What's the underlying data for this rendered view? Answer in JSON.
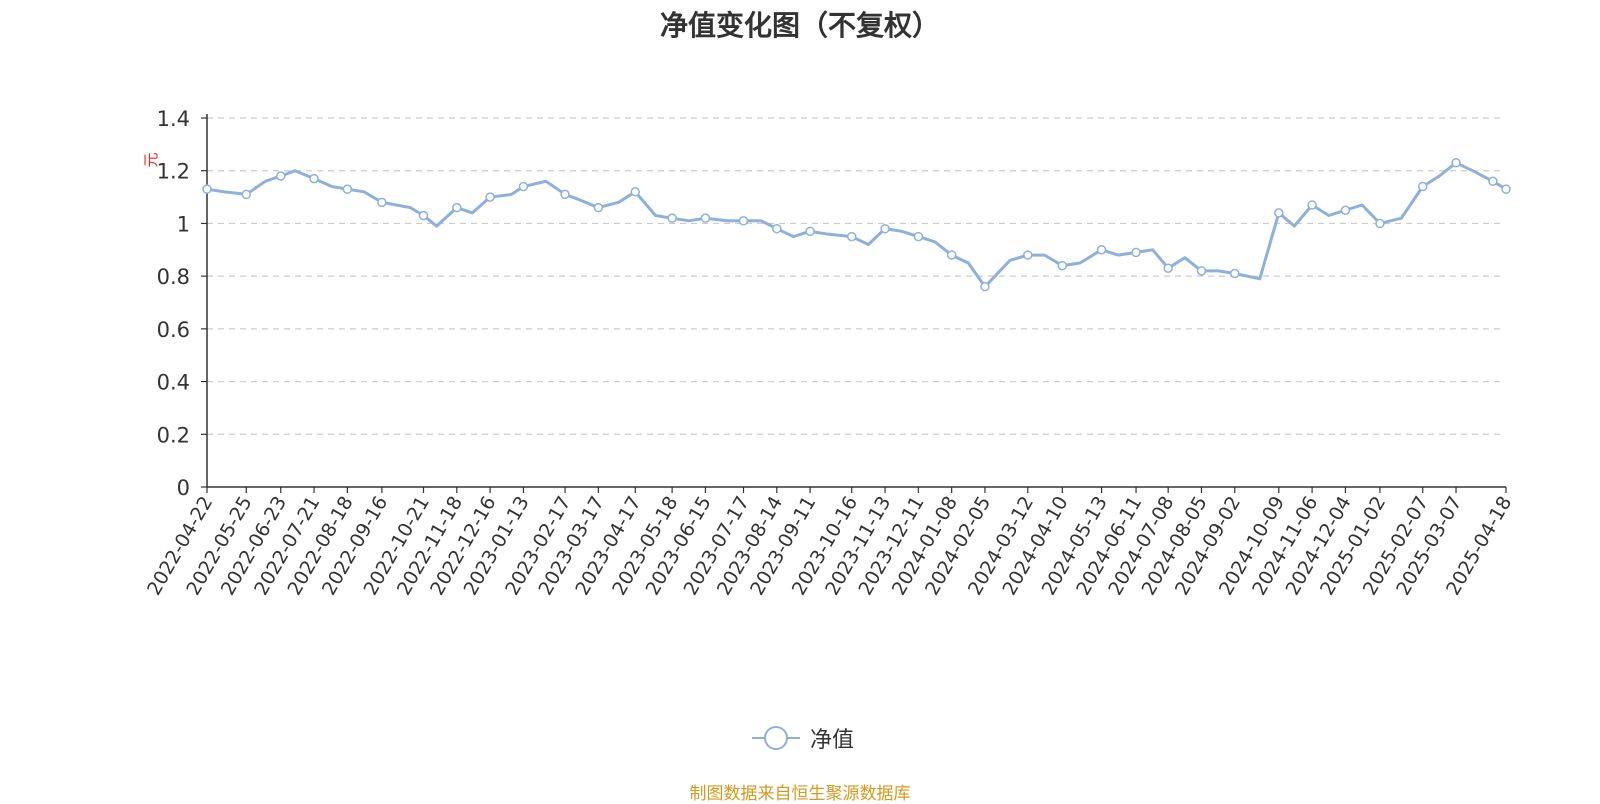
{
  "chart_data": {
    "type": "line",
    "title": "净值变化图（不复权）",
    "ylabel": "元",
    "ylim": [
      0,
      1.4
    ],
    "y_ticks": [
      "0",
      "0.2",
      "0.4",
      "0.6",
      "0.8",
      "1",
      "1.2",
      "1.4"
    ],
    "grid": true,
    "legend_position": "bottom-center",
    "x_ticks": [
      "2022-04-22",
      "2022-05-25",
      "2022-06-23",
      "2022-07-21",
      "2022-08-18",
      "2022-09-16",
      "2022-10-21",
      "2022-11-18",
      "2022-12-16",
      "2023-01-13",
      "2023-02-17",
      "2023-03-17",
      "2023-04-17",
      "2023-05-18",
      "2023-06-15",
      "2023-07-17",
      "2023-08-14",
      "2023-09-11",
      "2023-10-16",
      "2023-11-13",
      "2023-12-11",
      "2024-01-08",
      "2024-02-05",
      "2024-03-12",
      "2024-04-10",
      "2024-05-13",
      "2024-06-11",
      "2024-07-08",
      "2024-08-05",
      "2024-09-02",
      "2024-10-09",
      "2024-11-06",
      "2024-12-04",
      "2025-01-02",
      "2025-02-07",
      "2025-03-07",
      "2025-04-18"
    ],
    "series": [
      {
        "name": "净值",
        "color": "#8eb0dc",
        "x": [
          "2022-04-22",
          "2022-05-06",
          "2022-05-25",
          "2022-06-10",
          "2022-06-23",
          "2022-07-05",
          "2022-07-21",
          "2022-08-05",
          "2022-08-18",
          "2022-09-01",
          "2022-09-16",
          "2022-10-10",
          "2022-10-21",
          "2022-11-01",
          "2022-11-18",
          "2022-12-01",
          "2022-12-16",
          "2023-01-03",
          "2023-01-13",
          "2023-02-01",
          "2023-02-17",
          "2023-03-01",
          "2023-03-17",
          "2023-04-03",
          "2023-04-17",
          "2023-05-04",
          "2023-05-18",
          "2023-06-01",
          "2023-06-15",
          "2023-07-03",
          "2023-07-17",
          "2023-08-01",
          "2023-08-14",
          "2023-08-28",
          "2023-09-11",
          "2023-09-25",
          "2023-10-16",
          "2023-10-30",
          "2023-11-13",
          "2023-11-27",
          "2023-12-11",
          "2023-12-25",
          "2024-01-08",
          "2024-01-22",
          "2024-02-05",
          "2024-02-26",
          "2024-03-12",
          "2024-03-26",
          "2024-04-10",
          "2024-04-25",
          "2024-05-13",
          "2024-05-27",
          "2024-06-11",
          "2024-06-25",
          "2024-07-08",
          "2024-07-22",
          "2024-08-05",
          "2024-08-19",
          "2024-09-02",
          "2024-09-23",
          "2024-10-09",
          "2024-10-22",
          "2024-11-06",
          "2024-11-20",
          "2024-12-04",
          "2024-12-18",
          "2025-01-02",
          "2025-01-20",
          "2025-02-07",
          "2025-02-21",
          "2025-03-07",
          "2025-03-21",
          "2025-04-07",
          "2025-04-18"
        ],
        "values": [
          1.13,
          1.12,
          1.11,
          1.16,
          1.18,
          1.2,
          1.17,
          1.14,
          1.13,
          1.12,
          1.08,
          1.06,
          1.03,
          0.99,
          1.06,
          1.04,
          1.1,
          1.11,
          1.14,
          1.16,
          1.11,
          1.09,
          1.06,
          1.08,
          1.12,
          1.03,
          1.02,
          1.01,
          1.02,
          1.01,
          1.01,
          1.01,
          0.98,
          0.95,
          0.97,
          0.96,
          0.95,
          0.92,
          0.98,
          0.97,
          0.95,
          0.93,
          0.88,
          0.85,
          0.76,
          0.86,
          0.88,
          0.88,
          0.84,
          0.85,
          0.9,
          0.88,
          0.89,
          0.9,
          0.83,
          0.87,
          0.82,
          0.82,
          0.81,
          0.79,
          1.04,
          0.99,
          1.07,
          1.03,
          1.05,
          1.07,
          1.0,
          1.02,
          1.14,
          1.18,
          1.23,
          1.2,
          1.16,
          1.13
        ]
      }
    ]
  },
  "legend": {
    "label": "净值"
  },
  "source": "制图数据来自恒生聚源数据库"
}
